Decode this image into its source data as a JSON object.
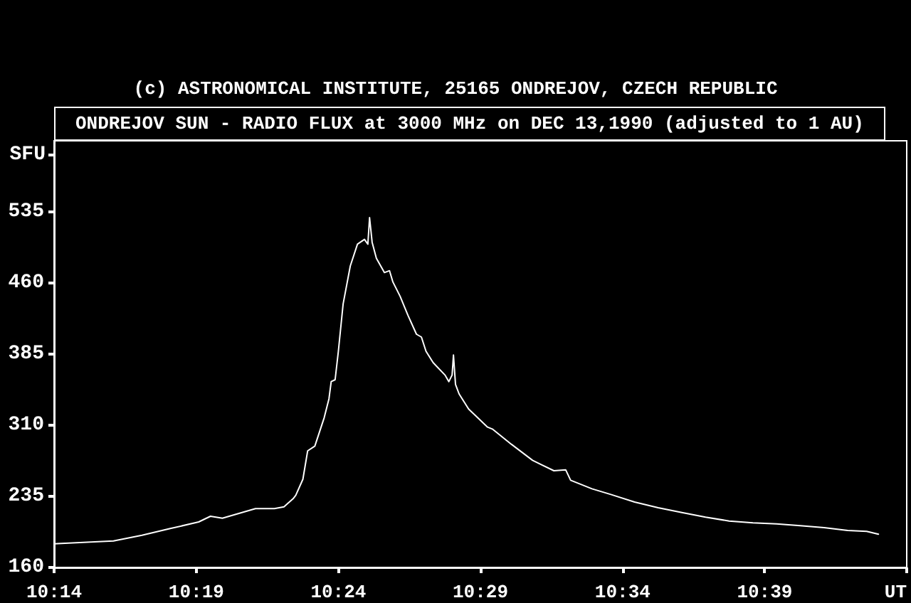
{
  "chart_data": {
    "type": "line",
    "title": "ONDREJOV SUN - RADIO FLUX at 3000 MHz on DEC 13,1990 (adjusted to 1 AU)",
    "annotations": [
      "(c) ASTRONOMICAL INSTITUTE, 25165 ONDREJOV, CZECH REPUBLIC"
    ],
    "xlabel": "UT",
    "ylabel": "SFU",
    "x": [
      10.2333,
      10.2681,
      10.2848,
      10.3014,
      10.3181,
      10.325,
      10.332,
      10.3514,
      10.3625,
      10.3681,
      10.3737,
      10.375,
      10.3792,
      10.382,
      10.3862,
      10.3917,
      10.3945,
      10.3958,
      10.3981,
      10.4,
      10.4028,
      10.407,
      10.4112,
      10.4153,
      10.4173,
      10.4183,
      10.4198,
      10.4223,
      10.427,
      10.43,
      10.432,
      10.4362,
      10.4408,
      10.4458,
      10.4487,
      10.4514,
      10.4556,
      10.4625,
      10.4648,
      10.4667,
      10.4675,
      10.4687,
      10.4708,
      10.4764,
      10.4875,
      10.4903,
      10.5014,
      10.5139,
      10.5264,
      10.5333,
      10.5362,
      10.5487,
      10.5598,
      10.5737,
      10.5875,
      10.6014,
      10.6153,
      10.6292,
      10.6431,
      10.657,
      10.6708,
      10.6848,
      10.6987,
      10.7098,
      10.7167
    ],
    "series": [
      {
        "color": "#ffffff",
        "values": [
          185,
          188,
          194,
          201,
          208,
          214,
          212,
          222,
          222,
          224,
          233,
          236,
          253,
          283,
          288,
          318,
          338,
          356,
          358,
          388,
          438,
          478,
          501,
          506,
          501,
          529,
          503,
          486,
          471,
          473,
          461,
          446,
          426,
          406,
          403,
          388,
          376,
          363,
          356,
          363,
          384,
          353,
          343,
          327,
          308,
          306,
          290,
          273,
          262,
          263,
          252,
          243,
          237,
          229,
          223,
          218,
          213,
          209,
          207,
          206,
          204,
          202,
          199,
          198,
          195
        ]
      }
    ],
    "xlim": [
      10.2333,
      10.7333
    ],
    "xticks": [
      {
        "value": 10.2333,
        "label": "10:14"
      },
      {
        "value": 10.3167,
        "label": "10:19"
      },
      {
        "value": 10.4,
        "label": "10:24"
      },
      {
        "value": 10.4833,
        "label": "10:29"
      },
      {
        "value": 10.5667,
        "label": "10:34"
      },
      {
        "value": 10.65,
        "label": "10:39"
      },
      {
        "value": 10.7333,
        "label": null
      }
    ],
    "ylim": [
      160,
      610
    ],
    "yticks": [
      160,
      235,
      310,
      385,
      460,
      535,
      {
        "value": 595,
        "label": null
      }
    ],
    "grid": false,
    "marker": "none",
    "line_style": "solid"
  }
}
